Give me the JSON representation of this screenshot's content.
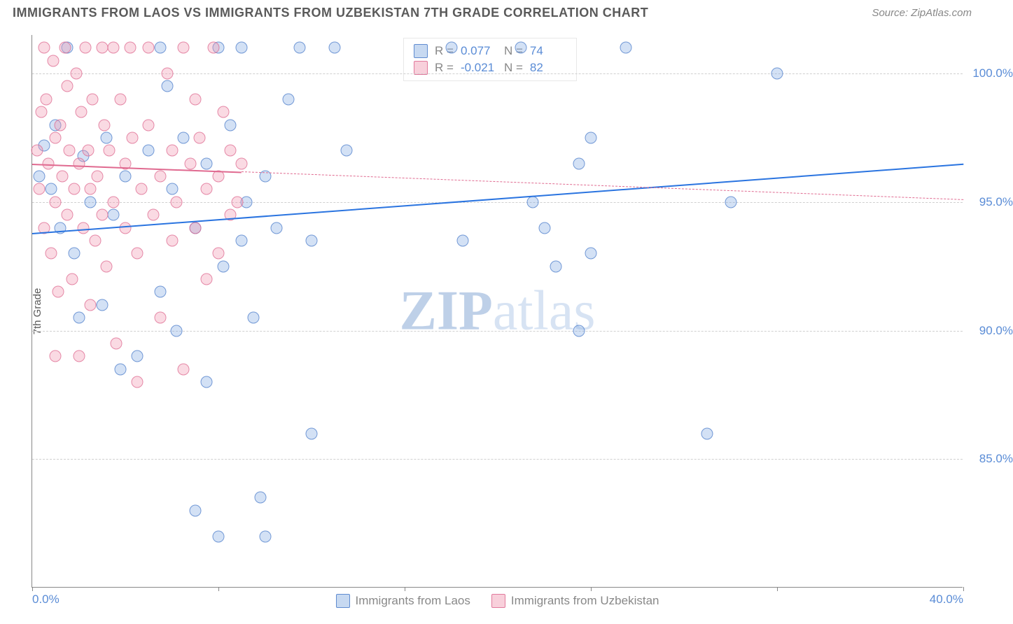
{
  "header": {
    "title": "IMMIGRANTS FROM LAOS VS IMMIGRANTS FROM UZBEKISTAN 7TH GRADE CORRELATION CHART",
    "source": "Source: ZipAtlas.com"
  },
  "chart": {
    "type": "scatter",
    "ylabel": "7th Grade",
    "watermark": {
      "bold": "ZIP",
      "rest": "atlas"
    },
    "background_color": "#ffffff",
    "grid_color": "#d0d0d0",
    "axis_color": "#888888",
    "label_color": "#5a8cd6",
    "xlim": [
      0,
      40
    ],
    "ylim": [
      80,
      101.5
    ],
    "y_ticks": [
      85.0,
      90.0,
      95.0,
      100.0
    ],
    "y_tick_labels": [
      "85.0%",
      "90.0%",
      "95.0%",
      "100.0%"
    ],
    "x_ticks": [
      0,
      8,
      16,
      24,
      32,
      40
    ],
    "x_tick_labels": {
      "0": "0.0%",
      "40": "40.0%"
    },
    "marker_size": 17,
    "series": [
      {
        "name": "Immigrants from Laos",
        "color_fill": "rgba(130,170,225,0.35)",
        "color_border": "rgba(70,120,200,0.7)",
        "r": 0.077,
        "n": 74,
        "trend": {
          "x1": 0,
          "y1": 93.8,
          "x2": 40,
          "y2": 96.5,
          "color": "#2a74e0",
          "width": 2.5,
          "dash": "solid"
        },
        "points": [
          [
            0.3,
            96.0
          ],
          [
            0.5,
            97.2
          ],
          [
            0.8,
            95.5
          ],
          [
            1.0,
            98.0
          ],
          [
            1.2,
            94.0
          ],
          [
            1.5,
            101.0
          ],
          [
            1.8,
            93.0
          ],
          [
            2.0,
            90.5
          ],
          [
            2.2,
            96.8
          ],
          [
            2.5,
            95.0
          ],
          [
            3.0,
            91.0
          ],
          [
            3.2,
            97.5
          ],
          [
            3.5,
            94.5
          ],
          [
            3.8,
            88.5
          ],
          [
            4.0,
            96.0
          ],
          [
            4.5,
            89.0
          ],
          [
            5.0,
            97.0
          ],
          [
            5.5,
            101.0
          ],
          [
            5.5,
            91.5
          ],
          [
            5.8,
            99.5
          ],
          [
            6.0,
            95.5
          ],
          [
            6.2,
            90.0
          ],
          [
            6.5,
            97.5
          ],
          [
            7.0,
            83.0
          ],
          [
            7.0,
            94.0
          ],
          [
            7.5,
            96.5
          ],
          [
            7.5,
            88.0
          ],
          [
            8.0,
            101.0
          ],
          [
            8.2,
            92.5
          ],
          [
            8.0,
            82.0
          ],
          [
            8.5,
            98.0
          ],
          [
            9.0,
            101.0
          ],
          [
            9.0,
            93.5
          ],
          [
            9.2,
            95.0
          ],
          [
            9.5,
            90.5
          ],
          [
            9.8,
            83.5
          ],
          [
            10.0,
            82.0
          ],
          [
            10.0,
            96.0
          ],
          [
            10.5,
            94.0
          ],
          [
            11.0,
            99.0
          ],
          [
            11.5,
            101.0
          ],
          [
            12.0,
            86.0
          ],
          [
            12.0,
            93.5
          ],
          [
            13.0,
            101.0
          ],
          [
            13.5,
            97.0
          ],
          [
            18.0,
            101.0
          ],
          [
            18.5,
            93.5
          ],
          [
            21.0,
            101.0
          ],
          [
            21.5,
            95.0
          ],
          [
            22.0,
            94.0
          ],
          [
            22.5,
            92.5
          ],
          [
            23.5,
            96.5
          ],
          [
            23.5,
            90.0
          ],
          [
            24.0,
            93.0
          ],
          [
            24.0,
            97.5
          ],
          [
            25.5,
            101.0
          ],
          [
            29.0,
            86.0
          ],
          [
            30.0,
            95.0
          ],
          [
            32.0,
            100.0
          ]
        ]
      },
      {
        "name": "Immigrants from Uzbekistan",
        "color_fill": "rgba(240,150,175,0.35)",
        "color_border": "rgba(220,100,140,0.7)",
        "r": -0.021,
        "n": 82,
        "trend": {
          "x1": 0,
          "y1": 96.5,
          "x2": 40,
          "y2": 95.1,
          "color": "#e06a90",
          "width": 1.2,
          "dash": "dashed",
          "solid_until": 9
        },
        "points": [
          [
            0.2,
            97.0
          ],
          [
            0.3,
            95.5
          ],
          [
            0.4,
            98.5
          ],
          [
            0.5,
            101.0
          ],
          [
            0.5,
            94.0
          ],
          [
            0.6,
            99.0
          ],
          [
            0.7,
            96.5
          ],
          [
            0.8,
            93.0
          ],
          [
            0.9,
            100.5
          ],
          [
            1.0,
            95.0
          ],
          [
            1.0,
            97.5
          ],
          [
            1.1,
            91.5
          ],
          [
            1.2,
            98.0
          ],
          [
            1.3,
            96.0
          ],
          [
            1.4,
            101.0
          ],
          [
            1.5,
            94.5
          ],
          [
            1.5,
            99.5
          ],
          [
            1.6,
            97.0
          ],
          [
            1.7,
            92.0
          ],
          [
            1.8,
            95.5
          ],
          [
            1.9,
            100.0
          ],
          [
            2.0,
            96.5
          ],
          [
            2.0,
            89.0
          ],
          [
            2.1,
            98.5
          ],
          [
            2.2,
            94.0
          ],
          [
            2.3,
            101.0
          ],
          [
            2.4,
            97.0
          ],
          [
            2.5,
            91.0
          ],
          [
            2.5,
            95.5
          ],
          [
            2.6,
            99.0
          ],
          [
            2.7,
            93.5
          ],
          [
            2.8,
            96.0
          ],
          [
            3.0,
            101.0
          ],
          [
            3.0,
            94.5
          ],
          [
            3.1,
            98.0
          ],
          [
            3.2,
            92.5
          ],
          [
            3.3,
            97.0
          ],
          [
            3.5,
            101.0
          ],
          [
            3.5,
            95.0
          ],
          [
            3.6,
            89.5
          ],
          [
            3.8,
            99.0
          ],
          [
            4.0,
            96.5
          ],
          [
            4.0,
            94.0
          ],
          [
            4.2,
            101.0
          ],
          [
            4.3,
            97.5
          ],
          [
            4.5,
            93.0
          ],
          [
            4.5,
            88.0
          ],
          [
            4.7,
            95.5
          ],
          [
            5.0,
            101.0
          ],
          [
            5.0,
            98.0
          ],
          [
            5.2,
            94.5
          ],
          [
            5.5,
            96.0
          ],
          [
            5.5,
            90.5
          ],
          [
            5.8,
            100.0
          ],
          [
            6.0,
            97.0
          ],
          [
            6.0,
            93.5
          ],
          [
            6.2,
            95.0
          ],
          [
            6.5,
            101.0
          ],
          [
            6.5,
            88.5
          ],
          [
            6.8,
            96.5
          ],
          [
            7.0,
            99.0
          ],
          [
            7.0,
            94.0
          ],
          [
            7.2,
            97.5
          ],
          [
            7.5,
            92.0
          ],
          [
            7.5,
            95.5
          ],
          [
            7.8,
            101.0
          ],
          [
            8.0,
            96.0
          ],
          [
            8.0,
            93.0
          ],
          [
            8.2,
            98.5
          ],
          [
            8.5,
            94.5
          ],
          [
            8.5,
            97.0
          ],
          [
            8.8,
            95.0
          ],
          [
            9.0,
            96.5
          ],
          [
            1.0,
            89.0
          ]
        ]
      }
    ],
    "legend_top": {
      "r_label": "R =",
      "n_label": "N ="
    },
    "legend_bottom": [
      {
        "swatch": "blue",
        "label": "Immigrants from Laos"
      },
      {
        "swatch": "pink",
        "label": "Immigrants from Uzbekistan"
      }
    ]
  }
}
